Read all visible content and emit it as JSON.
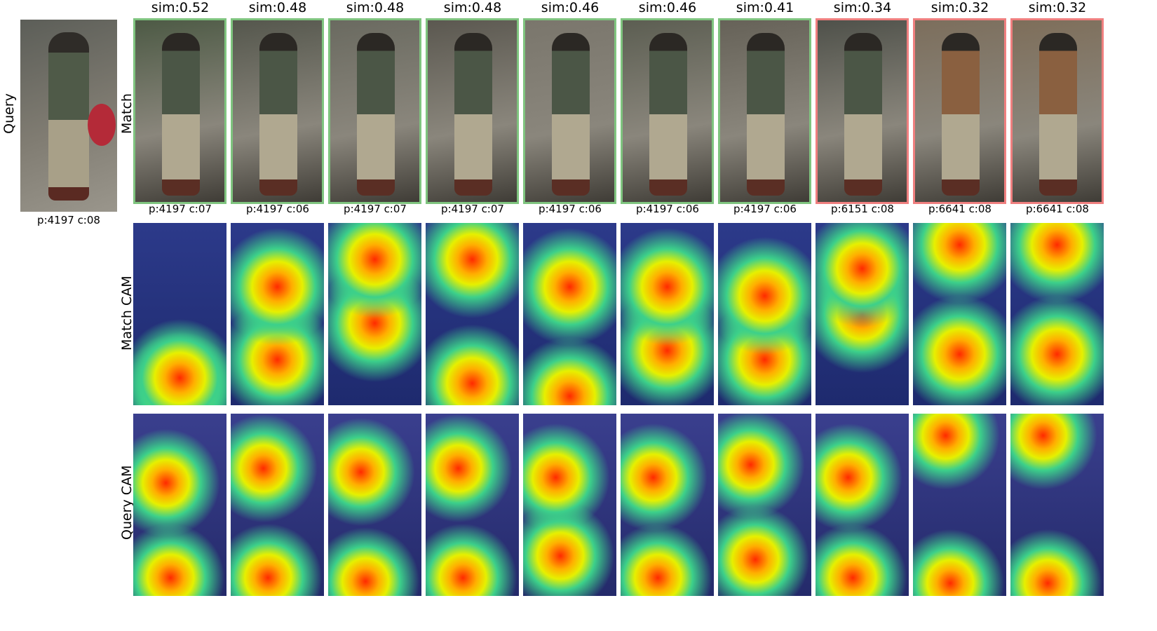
{
  "labels": {
    "query": "Query",
    "match": "Match",
    "match_cam": "Match CAM",
    "query_cam": "Query CAM"
  },
  "query": {
    "caption": "p:4197 c:08"
  },
  "matches": [
    {
      "sim": "sim:0.52",
      "caption": "p:4197 c:07",
      "correct": true,
      "tone": "#4d5a45",
      "cam_hot": [
        0.85,
        0.92
      ],
      "qcam_hot": [
        0.38,
        0.9
      ]
    },
    {
      "sim": "sim:0.48",
      "caption": "p:4197 c:06",
      "correct": true,
      "tone": "#55574d",
      "cam_hot": [
        0.35,
        0.75
      ],
      "qcam_hot": [
        0.3,
        0.9
      ]
    },
    {
      "sim": "sim:0.48",
      "caption": "p:4197 c:07",
      "correct": true,
      "tone": "#6a6a60",
      "cam_hot": [
        0.2,
        0.55
      ],
      "qcam_hot": [
        0.32,
        0.92
      ]
    },
    {
      "sim": "sim:0.48",
      "caption": "p:4197 c:07",
      "correct": true,
      "tone": "#5b5850",
      "cam_hot": [
        0.2,
        0.88
      ],
      "qcam_hot": [
        0.3,
        0.9
      ]
    },
    {
      "sim": "sim:0.46",
      "caption": "p:4197 c:06",
      "correct": true,
      "tone": "#7a766c",
      "cam_hot": [
        0.35,
        0.95
      ],
      "qcam_hot": [
        0.35,
        0.78
      ]
    },
    {
      "sim": "sim:0.46",
      "caption": "p:4197 c:06",
      "correct": true,
      "tone": "#5c5e52",
      "cam_hot": [
        0.35,
        0.7
      ],
      "qcam_hot": [
        0.35,
        0.9
      ]
    },
    {
      "sim": "sim:0.41",
      "caption": "p:4197 c:06",
      "correct": true,
      "tone": "#666258",
      "cam_hot": [
        0.4,
        0.75
      ],
      "qcam_hot": [
        0.28,
        0.8
      ]
    },
    {
      "sim": "sim:0.34",
      "caption": "p:6151 c:08",
      "correct": false,
      "tone": "#4f514a",
      "cam_hot": [
        0.25,
        0.5
      ],
      "qcam_hot": [
        0.35,
        0.9
      ]
    },
    {
      "sim": "sim:0.32",
      "caption": "p:6641 c:08",
      "correct": false,
      "tone": "#7c6e5c",
      "cam_hot": [
        0.12,
        0.72
      ],
      "qcam_hot": [
        0.12,
        0.93
      ]
    },
    {
      "sim": "sim:0.32",
      "caption": "p:6641 c:08",
      "correct": false,
      "tone": "#7e6e5a",
      "cam_hot": [
        0.12,
        0.72
      ],
      "qcam_hot": [
        0.12,
        0.93
      ]
    }
  ],
  "colors": {
    "correct_border": "#7fc47f",
    "wrong_border": "#ef7f7f",
    "cam_background": "#2a3170"
  }
}
